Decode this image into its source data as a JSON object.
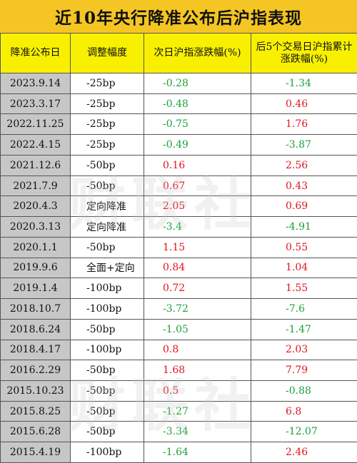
{
  "title": "近10年央行降准公布后沪指表现",
  "headers": [
    "降准公布日",
    "调整幅度",
    "次日沪指涨跌幅(%)",
    "后5个交易日沪指累计涨跌幅(%)"
  ],
  "colors": {
    "up": "#e0141e",
    "down": "#1da13a",
    "title_bg": "#f5c623",
    "header_bg": "#f8f000",
    "date_bg": "#c7c7c7"
  },
  "rows": [
    {
      "date": "2023.9.14",
      "adj": "-25bp",
      "next": "-0.28",
      "five": "-1.34"
    },
    {
      "date": "2023.3.17",
      "adj": "-25bp",
      "next": "-0.48",
      "five": "0.46"
    },
    {
      "date": "2022.11.25",
      "adj": "-25bp",
      "next": "-0.75",
      "five": "1.76"
    },
    {
      "date": "2022.4.15",
      "adj": "-25bp",
      "next": "-0.49",
      "five": "-3.87"
    },
    {
      "date": "2021.12.6",
      "adj": "-50bp",
      "next": "0.16",
      "five": "2.56"
    },
    {
      "date": "2021.7.9",
      "adj": "-50bp",
      "next": "0.67",
      "five": "0.43"
    },
    {
      "date": "2020.4.3",
      "adj": "定向降准",
      "next": "2.05",
      "five": "0.69"
    },
    {
      "date": "2020.3.13",
      "adj": "定向降准",
      "next": "-3.4",
      "five": "-4.91"
    },
    {
      "date": "2020.1.1",
      "adj": "-50bp",
      "next": "1.15",
      "five": "0.55"
    },
    {
      "date": "2019.9.6",
      "adj": "全面+定向",
      "next": "0.84",
      "five": "1.04"
    },
    {
      "date": "2019.1.4",
      "adj": "-100bp",
      "next": "0.72",
      "five": "1.55"
    },
    {
      "date": "2018.10.7",
      "adj": "-100bp",
      "next": "-3.72",
      "five": "-7.6"
    },
    {
      "date": "2018.6.24",
      "adj": "-50bp",
      "next": "-1.05",
      "five": "-1.47"
    },
    {
      "date": "2018.4.17",
      "adj": "-100bp",
      "next": "0.8",
      "five": "2.03"
    },
    {
      "date": "2016.2.29",
      "adj": "-50bp",
      "next": "1.68",
      "five": "7.79"
    },
    {
      "date": "2015.10.23",
      "adj": "-50bp",
      "next": "0.5",
      "five": "-0.88"
    },
    {
      "date": "2015.8.25",
      "adj": "-50bp",
      "next": "-1.27",
      "five": "6.8"
    },
    {
      "date": "2015.6.28",
      "adj": "-50bp",
      "next": "-3.34",
      "five": "-12.07"
    },
    {
      "date": "2015.4.19",
      "adj": "-100bp",
      "next": "-1.64",
      "five": "2.46"
    }
  ],
  "watermark": "财联社"
}
